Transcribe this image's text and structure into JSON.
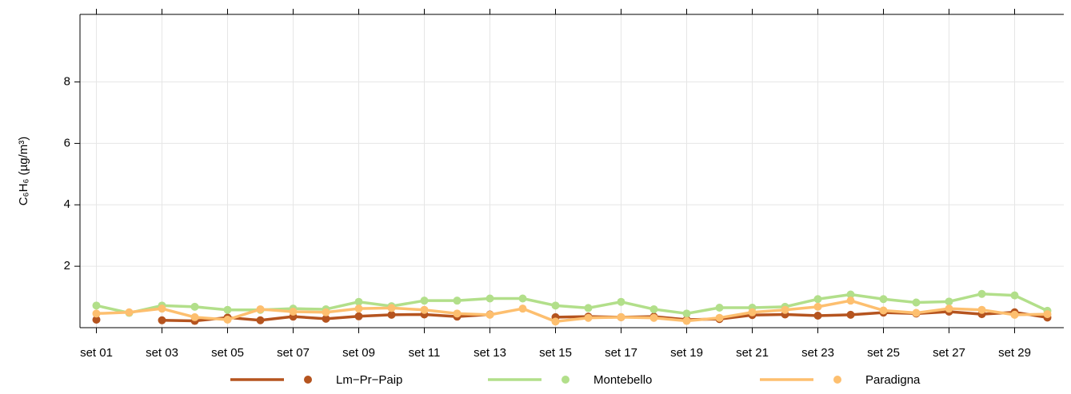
{
  "chart_data": {
    "type": "line",
    "y_label": "C₆H₆ (µg/m³)",
    "categories": [
      "set 01",
      null,
      "set 03",
      null,
      "set 05",
      null,
      "set 07",
      null,
      "set 09",
      null,
      "set 11",
      null,
      "set 13",
      null,
      "set 15",
      null,
      "set 17",
      null,
      "set 19",
      null,
      "set 21",
      null,
      "set 23",
      null,
      "set 25",
      null,
      "set 27",
      null,
      "set 29",
      null
    ],
    "series": [
      {
        "name": "Lm−Pr−Paip",
        "color": "#b5541f",
        "values": [
          0.26,
          null,
          0.24,
          0.22,
          0.33,
          0.24,
          0.36,
          0.29,
          0.37,
          0.42,
          0.43,
          0.36,
          0.43,
          null,
          0.34,
          0.36,
          0.34,
          0.36,
          0.26,
          0.28,
          0.41,
          0.43,
          0.39,
          0.42,
          0.49,
          0.46,
          0.52,
          0.44,
          0.5,
          0.33
        ]
      },
      {
        "name": "Montebello",
        "color": "#b2df8a",
        "values": [
          0.72,
          0.48,
          0.72,
          0.68,
          0.58,
          0.58,
          0.62,
          0.6,
          0.84,
          0.7,
          0.88,
          0.88,
          0.95,
          0.95,
          0.72,
          0.64,
          0.84,
          0.6,
          0.46,
          0.65,
          0.65,
          0.68,
          0.93,
          1.08,
          0.93,
          0.82,
          0.85,
          1.1,
          1.05,
          0.55
        ]
      },
      {
        "name": "Paradigna",
        "color": "#fdbf6f",
        "values": [
          0.46,
          0.5,
          0.62,
          0.34,
          0.26,
          0.6,
          0.52,
          0.5,
          0.62,
          0.64,
          0.58,
          0.46,
          0.42,
          0.62,
          0.2,
          0.32,
          0.34,
          0.32,
          0.22,
          0.32,
          0.5,
          0.58,
          0.68,
          0.88,
          0.56,
          0.48,
          0.62,
          0.58,
          0.42,
          0.44
        ]
      }
    ],
    "ylim": [
      0,
      10.2
    ],
    "yticks": [
      2,
      4,
      6,
      8
    ],
    "grid": true,
    "legend": "bottom"
  }
}
